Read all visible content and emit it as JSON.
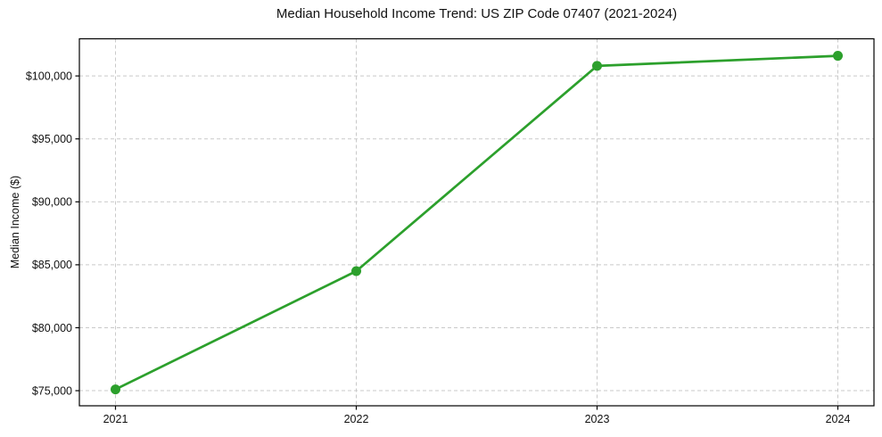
{
  "chart_data": {
    "type": "line",
    "title": "Median Household Income Trend: US ZIP Code 07407 (2021-2024)",
    "xlabel": "",
    "ylabel": "Median Income ($)",
    "x": [
      2021,
      2022,
      2023,
      2024
    ],
    "series": [
      {
        "name": "Median Household Income",
        "values": [
          75100,
          84500,
          100800,
          101600
        ]
      }
    ],
    "xticks": {
      "values": [
        2021,
        2022,
        2023,
        2024
      ],
      "labels": [
        "2021",
        "2022",
        "2023",
        "2024"
      ]
    },
    "yticks": {
      "values": [
        75000,
        80000,
        85000,
        90000,
        95000,
        100000
      ],
      "labels": [
        "$75,000",
        "$80,000",
        "$85,000",
        "$90,000",
        "$95,000",
        "$100,000"
      ]
    },
    "xlim": [
      2020.85,
      2024.15
    ],
    "ylim": [
      73800,
      102950
    ],
    "grid": "dashed",
    "legend": "none",
    "colors": {
      "line": "#2ca02c",
      "marker": "#2ca02c",
      "grid": "#c9c9c9",
      "spine": "#000000",
      "text": "#111111",
      "background": "#ffffff"
    }
  }
}
